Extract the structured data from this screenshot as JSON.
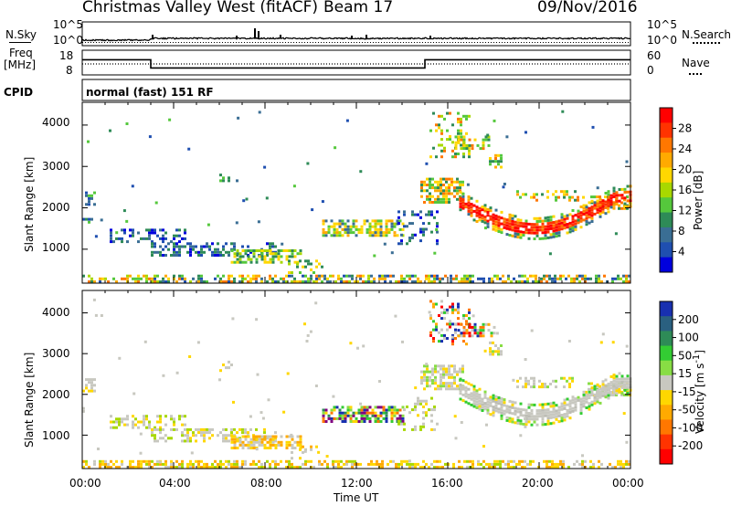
{
  "header": {
    "title": "Christmas Valley West (fitACF)",
    "beam": "Beam 17",
    "date": "09/Nov/2016"
  },
  "strip_labels": {
    "nsky": "N.Sky",
    "nsearch": "N.Search",
    "freq_line1": "Freq",
    "freq_line2": "[MHz]",
    "nave": "Nave",
    "cpid": "CPID",
    "cpid_value": "normal (fast) 151 RF"
  },
  "strip_ticks": {
    "noise_left": [
      "10^5",
      "10^0"
    ],
    "noise_right": [
      "10^5",
      "10^0"
    ],
    "freq_left": [
      "18",
      "8"
    ],
    "freq_right": [
      "60",
      "0"
    ]
  },
  "chart_data": [
    {
      "type": "line",
      "name": "noise",
      "series": [
        {
          "name": "N.Sky",
          "x": [
            0,
            3,
            3.01,
            24
          ],
          "y": [
            1.5,
            1.5,
            2.2,
            2.2
          ]
        },
        {
          "name": "N.Search",
          "x": [
            0,
            24
          ],
          "y": [
            1,
            1
          ]
        }
      ],
      "xlim": [
        0,
        24
      ],
      "ylim_left": [
        1,
        100000
      ],
      "scale": "log"
    },
    {
      "type": "line",
      "name": "frequency",
      "series": [
        {
          "name": "Freq",
          "x": [
            0,
            3,
            3,
            15,
            15,
            24
          ],
          "y": [
            15,
            15,
            10,
            10,
            15,
            15
          ]
        },
        {
          "name": "Nave",
          "x": [
            0,
            24
          ],
          "y": [
            22,
            22
          ]
        }
      ],
      "xlim": [
        0,
        24
      ],
      "ylim_left": [
        8,
        18
      ],
      "ylim_right": [
        0,
        60
      ]
    },
    {
      "type": "heatmap",
      "name": "power",
      "ylabel": "Slant Range [km]",
      "colorbar_label": "Power [dB]",
      "colorbar_ticks": [
        "28",
        "24",
        "20",
        "16",
        "12",
        "8",
        "4"
      ],
      "colorbar_colors": [
        "#ff0000",
        "#ff3300",
        "#ff7700",
        "#ffaa00",
        "#ffd700",
        "#a8d800",
        "#55c83c",
        "#2e8b57",
        "#3a6e94",
        "#1f4fb0",
        "#0000dd"
      ],
      "y_ticks": [
        "4000",
        "3000",
        "2000",
        "1000"
      ],
      "ylim": [
        180,
        4550
      ],
      "xlim": [
        0,
        24
      ]
    },
    {
      "type": "heatmap",
      "name": "velocity",
      "ylabel": "Slant Range [km]",
      "colorbar_label": "Velocity [m s^-1]",
      "colorbar_ticks": [
        "200",
        "100",
        "50",
        "15",
        "-15",
        "-50",
        "-100",
        "-200"
      ],
      "colorbar_colors": [
        "#1830b0",
        "#2a6080",
        "#2e8b57",
        "#33cc33",
        "#88dd44",
        "#c8c8c0",
        "#ffd700",
        "#ffaa00",
        "#ff7700",
        "#ff3300",
        "#ff0000"
      ],
      "y_ticks": [
        "4000",
        "3000",
        "2000",
        "1000"
      ],
      "ylim": [
        180,
        4550
      ],
      "xlim": [
        0,
        24
      ],
      "xlabel": "Time UT",
      "x_ticks": [
        "00:00",
        "04:00",
        "08:00",
        "12:00",
        "16:00",
        "20:00",
        "00:00"
      ]
    }
  ]
}
